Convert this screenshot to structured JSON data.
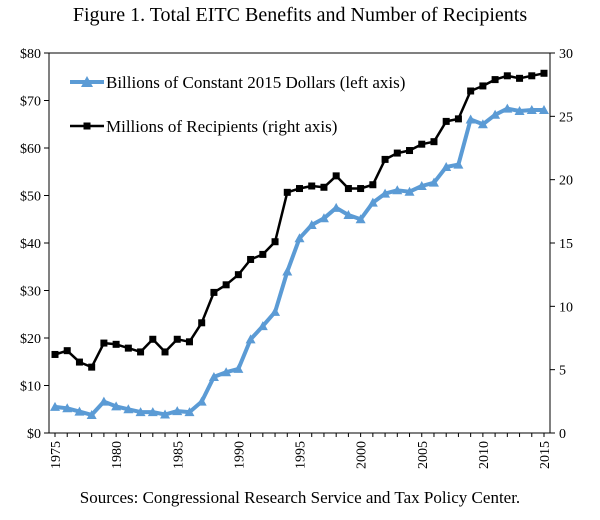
{
  "chart_data": {
    "type": "line",
    "title": "Figure 1. Total EITC Benefits and Number of Recipients",
    "source": "Sources: Congressional Research Service and Tax Policy Center.",
    "x": [
      1975,
      1976,
      1977,
      1978,
      1979,
      1980,
      1981,
      1982,
      1983,
      1984,
      1985,
      1986,
      1987,
      1988,
      1989,
      1990,
      1991,
      1992,
      1993,
      1994,
      1995,
      1996,
      1997,
      1998,
      1999,
      2000,
      2001,
      2002,
      2003,
      2004,
      2005,
      2006,
      2007,
      2008,
      2009,
      2010,
      2011,
      2012,
      2013,
      2014,
      2015
    ],
    "xlim": [
      1975,
      2015
    ],
    "xticks": [
      "1975",
      "1980",
      "1985",
      "1990",
      "1995",
      "2000",
      "2005",
      "2010",
      "2015"
    ],
    "yleft": {
      "lim": [
        0,
        80
      ],
      "ticks": [
        "$0",
        "$10",
        "$20",
        "$30",
        "$40",
        "$50",
        "$60",
        "$70",
        "$80"
      ]
    },
    "yright": {
      "lim": [
        0,
        30
      ],
      "ticks": [
        "0",
        "5",
        "10",
        "15",
        "20",
        "25",
        "30"
      ]
    },
    "grid": false,
    "legend_position": "top-left",
    "series": [
      {
        "name": "Billions of Constant 2015 Dollars (left axis)",
        "axis": "left",
        "color": "#5b9bd5",
        "marker": "triangle",
        "values": [
          5.5,
          5.2,
          4.5,
          3.8,
          6.6,
          5.6,
          5.0,
          4.4,
          4.4,
          3.9,
          4.6,
          4.4,
          6.6,
          11.8,
          12.8,
          13.5,
          19.7,
          22.5,
          25.5,
          34.0,
          41.0,
          43.8,
          45.2,
          47.4,
          45.9,
          45.0,
          48.5,
          50.4,
          51.1,
          50.8,
          52.0,
          52.7,
          56.0,
          56.5,
          66.0,
          65.0,
          67.0,
          68.3,
          67.8,
          68.0,
          68.0
        ]
      },
      {
        "name": "Millions of Recipients (right axis)",
        "axis": "right",
        "color": "#000000",
        "marker": "square",
        "values": [
          6.2,
          6.5,
          5.6,
          5.2,
          7.1,
          7.0,
          6.7,
          6.4,
          7.4,
          6.4,
          7.4,
          7.2,
          8.7,
          11.1,
          11.7,
          12.5,
          13.7,
          14.1,
          15.1,
          19.0,
          19.3,
          19.5,
          19.4,
          20.3,
          19.3,
          19.3,
          19.6,
          21.6,
          22.1,
          22.3,
          22.8,
          23.0,
          24.6,
          24.8,
          27.0,
          27.4,
          27.9,
          28.2,
          28.0,
          28.2,
          28.4
        ]
      }
    ]
  }
}
